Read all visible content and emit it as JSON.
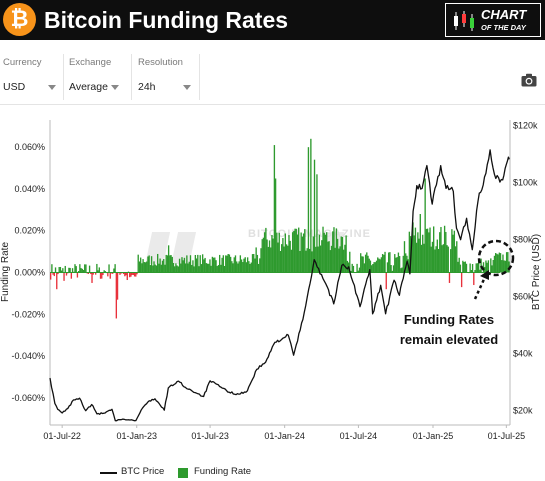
{
  "header": {
    "title": "Bitcoin Funding Rates",
    "bitcoin_symbol": "₿",
    "badge_line1": "CHART",
    "badge_line2": "OF THE DAY",
    "colors": {
      "background": "#0e0e0e",
      "bitcoin": "#f7931a"
    }
  },
  "controls": {
    "currency": {
      "label": "Currency",
      "value": "USD"
    },
    "exchange": {
      "label": "Exchange",
      "value": "Average"
    },
    "resolution": {
      "label": "Resolution",
      "value": "24h"
    },
    "camera_icon": "camera-icon"
  },
  "watermark": "BITCOIN MAGAZINE",
  "annotation": {
    "line1": "Funding Rates",
    "line2": "remain elevated"
  },
  "chart_data": {
    "type": "line",
    "x_tick_labels": [
      "01-Jul-22",
      "01-Jan-23",
      "01-Jul-23",
      "01-Jan-24",
      "01-Jul-24",
      "01-Jan-25",
      "01-Jul-25"
    ],
    "xlim": [
      "2022-06-01",
      "2025-07-10"
    ],
    "ylabel_left": "Funding Rate",
    "ylabel_right": "BTC Price (USD)",
    "y_left_ticks": [
      "0.060%",
      "0.040%",
      "0.020%",
      "0.000%",
      "-0.020%",
      "-0.040%",
      "-0.060%"
    ],
    "y_left_lim": [
      -0.073,
      0.073
    ],
    "y_right_ticks": [
      "$120k",
      "$100k",
      "$80k",
      "$60k",
      "$40k",
      "$20k"
    ],
    "y_right_lim": [
      15000,
      122000
    ],
    "series": [
      {
        "name": "BTC Price",
        "axis": "right",
        "color": "#111111",
        "points": [
          [
            "2022-06-01",
            31500
          ],
          [
            "2022-06-13",
            22500
          ],
          [
            "2022-06-20",
            20500
          ],
          [
            "2022-07-01",
            19200
          ],
          [
            "2022-07-15",
            20800
          ],
          [
            "2022-07-29",
            23800
          ],
          [
            "2022-08-13",
            24400
          ],
          [
            "2022-08-28",
            20000
          ],
          [
            "2022-09-12",
            22200
          ],
          [
            "2022-09-25",
            18900
          ],
          [
            "2022-10-15",
            19200
          ],
          [
            "2022-11-01",
            20500
          ],
          [
            "2022-11-09",
            16500
          ],
          [
            "2022-12-01",
            17000
          ],
          [
            "2022-12-30",
            16550
          ],
          [
            "2023-01-15",
            20900
          ],
          [
            "2023-02-01",
            23500
          ],
          [
            "2023-02-15",
            24200
          ],
          [
            "2023-03-10",
            20200
          ],
          [
            "2023-03-20",
            28000
          ],
          [
            "2023-04-14",
            30400
          ],
          [
            "2023-05-01",
            28200
          ],
          [
            "2023-06-15",
            25000
          ],
          [
            "2023-07-01",
            30500
          ],
          [
            "2023-08-17",
            26500
          ],
          [
            "2023-09-10",
            25800
          ],
          [
            "2023-10-01",
            27000
          ],
          [
            "2023-10-24",
            34500
          ],
          [
            "2023-11-15",
            37000
          ],
          [
            "2023-12-08",
            44000
          ],
          [
            "2024-01-10",
            46500
          ],
          [
            "2024-01-23",
            39500
          ],
          [
            "2024-02-15",
            52000
          ],
          [
            "2024-03-14",
            73000
          ],
          [
            "2024-04-15",
            63500
          ],
          [
            "2024-05-01",
            57500
          ],
          [
            "2024-05-21",
            71000
          ],
          [
            "2024-06-07",
            70500
          ],
          [
            "2024-07-05",
            56500
          ],
          [
            "2024-07-29",
            69500
          ],
          [
            "2024-08-05",
            54000
          ],
          [
            "2024-08-25",
            64000
          ],
          [
            "2024-09-06",
            54000
          ],
          [
            "2024-09-27",
            65800
          ],
          [
            "2024-10-10",
            60500
          ],
          [
            "2024-10-29",
            72500
          ],
          [
            "2024-11-05",
            68000
          ],
          [
            "2024-11-13",
            90000
          ],
          [
            "2024-11-22",
            99000
          ],
          [
            "2024-12-05",
            98000
          ],
          [
            "2024-12-17",
            106000
          ],
          [
            "2024-12-30",
            92500
          ],
          [
            "2025-01-20",
            106000
          ],
          [
            "2025-02-02",
            98000
          ],
          [
            "2025-02-20",
            97000
          ],
          [
            "2025-02-28",
            84000
          ],
          [
            "2025-03-10",
            80000
          ],
          [
            "2025-03-25",
            87500
          ],
          [
            "2025-04-08",
            76500
          ],
          [
            "2025-04-22",
            93500
          ],
          [
            "2025-05-08",
            102000
          ],
          [
            "2025-05-22",
            111500
          ],
          [
            "2025-06-05",
            101500
          ],
          [
            "2025-06-22",
            101000
          ],
          [
            "2025-07-01",
            106500
          ],
          [
            "2025-07-06",
            109000
          ],
          [
            "2025-07-08",
            108200
          ]
        ]
      },
      {
        "name": "Funding Rate",
        "axis": "left",
        "color_positive": "#2e9a2e",
        "color_negative": "#e8313b",
        "spikes": [
          [
            "2022-06-15",
            -0.008
          ],
          [
            "2022-07-05",
            -0.004
          ],
          [
            "2022-09-10",
            -0.005
          ],
          [
            "2022-10-01",
            -0.003
          ],
          [
            "2022-11-10",
            -0.022
          ],
          [
            "2022-11-12",
            -0.013
          ],
          [
            "2022-12-15",
            -0.002
          ],
          [
            "2023-03-20",
            0.013
          ],
          [
            "2023-10-20",
            0.012
          ],
          [
            "2023-12-05",
            0.061
          ],
          [
            "2023-12-08",
            0.045
          ],
          [
            "2024-02-28",
            0.06
          ],
          [
            "2024-03-05",
            0.064
          ],
          [
            "2024-03-12",
            0.054
          ],
          [
            "2024-03-18",
            0.047
          ],
          [
            "2024-04-05",
            0.019
          ],
          [
            "2024-05-20",
            0.017
          ],
          [
            "2024-09-06",
            -0.008
          ],
          [
            "2024-10-20",
            0.015
          ],
          [
            "2024-11-12",
            0.024
          ],
          [
            "2024-11-28",
            0.028
          ],
          [
            "2024-12-10",
            0.045
          ],
          [
            "2024-12-18",
            0.021
          ],
          [
            "2025-02-10",
            -0.005
          ],
          [
            "2025-03-10",
            -0.007
          ],
          [
            "2025-04-10",
            -0.006
          ],
          [
            "2025-06-01",
            0.008
          ]
        ]
      }
    ]
  },
  "legend": [
    {
      "name": "BTC Price",
      "kind": "line"
    },
    {
      "name": "Funding Rate",
      "kind": "square"
    }
  ]
}
